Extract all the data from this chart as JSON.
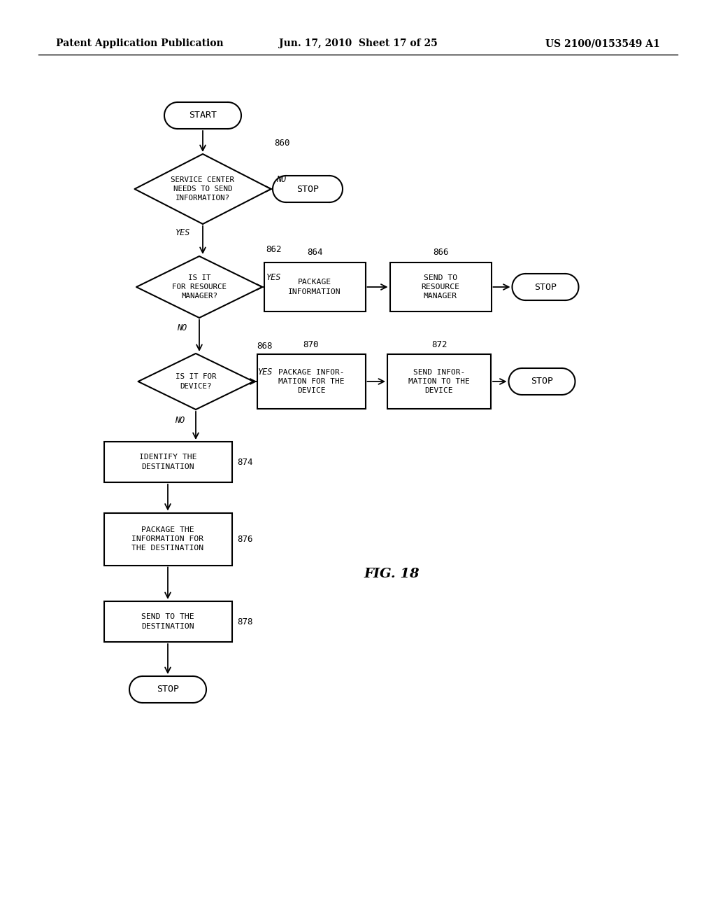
{
  "header_left": "Patent Application Publication",
  "header_mid": "Jun. 17, 2010  Sheet 17 of 25",
  "header_right": "US 2100/0153549 A1",
  "fig_label": "FIG. 18",
  "background": "#ffffff"
}
